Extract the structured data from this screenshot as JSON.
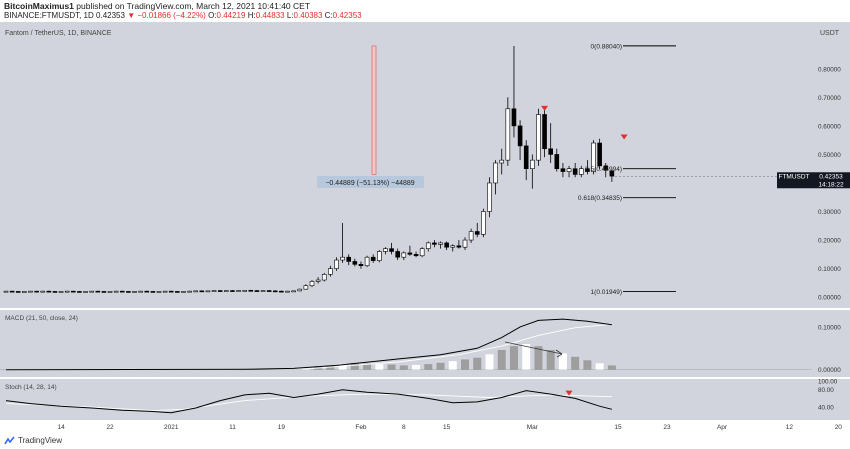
{
  "header": {
    "line1_author": "BitcoinMaximus1",
    "line1_rest": " published on TradingView.com, March 12, 2021 10:41:40 CET",
    "symbol": "BINANCE:FTMUSDT, 1D",
    "last": "0.42353",
    "change": "−0.01866 (−4.22%)",
    "o_label": "O:",
    "o": "0.44219",
    "h_label": "H:",
    "h": "0.44833",
    "l_label": "L:",
    "l": "0.40383",
    "c_label": "C:",
    "c": "0.42353"
  },
  "footer": {
    "brand": "TradingView"
  },
  "colors": {
    "pane_bg": "#d1d4dc",
    "candle_up": "#ffffff",
    "candle_down": "#000000",
    "accent_red": "#e0302d",
    "measure_box": "#b8c8dc",
    "price_tag": "#131722"
  },
  "chart_data": {
    "type": "candlestick",
    "title": "Fantom / TetherUS, 1D, BINANCE",
    "currency": "USDT",
    "price_axis_ticks": [
      "0.80000",
      "0.70000",
      "0.60000",
      "0.50000",
      "0.40000",
      "0.30000",
      "0.20000",
      "0.10000",
      "0.00000"
    ],
    "ylim": [
      -0.01,
      0.95
    ],
    "time_axis_ticks": [
      {
        "label": "14",
        "day": 0
      },
      {
        "label": "22",
        "day": 8
      },
      {
        "label": "2021",
        "day": 18
      },
      {
        "label": "11",
        "day": 28
      },
      {
        "label": "19",
        "day": 36
      },
      {
        "label": "Feb",
        "day": 49
      },
      {
        "label": "8",
        "day": 56
      },
      {
        "label": "15",
        "day": 63
      },
      {
        "label": "Mar",
        "day": 77
      },
      {
        "label": "15",
        "day": 91
      },
      {
        "label": "23",
        "day": 99
      },
      {
        "label": "Apr",
        "day": 108
      },
      {
        "label": "12",
        "day": 119
      },
      {
        "label": "20",
        "day": 127
      }
    ],
    "x_day_range": [
      -9,
      130
    ],
    "current_price": {
      "label": "FTMUSDT",
      "value": "0.42353",
      "countdown": "14:18:22"
    },
    "fib_levels": [
      {
        "label": "0(0.88040)",
        "value": 0.8804
      },
      {
        "label": "0.5(0.44994)",
        "value": 0.44994
      },
      {
        "label": "0.618(0.34835)",
        "value": 0.34835
      },
      {
        "label": "1(0.01949)",
        "value": 0.01949
      }
    ],
    "measure": {
      "text": "−0.44889 (−51.13%) −44889",
      "from": 0.88,
      "to": 0.43
    },
    "sell_arrows": [
      {
        "day": 79,
        "value": 0.67
      },
      {
        "day": 92,
        "value": 0.57
      }
    ],
    "candles": [
      [
        -9,
        0.02,
        0.022,
        0.019,
        0.021
      ],
      [
        -8,
        0.021,
        0.022,
        0.019,
        0.02
      ],
      [
        -7,
        0.02,
        0.021,
        0.018,
        0.019
      ],
      [
        -6,
        0.019,
        0.021,
        0.018,
        0.02
      ],
      [
        -5,
        0.02,
        0.022,
        0.019,
        0.021
      ],
      [
        -4,
        0.021,
        0.022,
        0.019,
        0.02
      ],
      [
        -3,
        0.02,
        0.022,
        0.019,
        0.021
      ],
      [
        -2,
        0.021,
        0.022,
        0.019,
        0.02
      ],
      [
        -1,
        0.02,
        0.021,
        0.018,
        0.019
      ],
      [
        0,
        0.019,
        0.021,
        0.018,
        0.02
      ],
      [
        1,
        0.02,
        0.022,
        0.019,
        0.021
      ],
      [
        2,
        0.021,
        0.022,
        0.019,
        0.02
      ],
      [
        3,
        0.02,
        0.021,
        0.018,
        0.019
      ],
      [
        4,
        0.019,
        0.021,
        0.018,
        0.02
      ],
      [
        5,
        0.02,
        0.022,
        0.019,
        0.021
      ],
      [
        6,
        0.021,
        0.022,
        0.019,
        0.02
      ],
      [
        7,
        0.02,
        0.021,
        0.018,
        0.019
      ],
      [
        8,
        0.019,
        0.021,
        0.018,
        0.02
      ],
      [
        9,
        0.02,
        0.022,
        0.019,
        0.021
      ],
      [
        10,
        0.021,
        0.022,
        0.019,
        0.02
      ],
      [
        11,
        0.02,
        0.021,
        0.018,
        0.019
      ],
      [
        12,
        0.019,
        0.021,
        0.018,
        0.02
      ],
      [
        13,
        0.02,
        0.022,
        0.019,
        0.021
      ],
      [
        14,
        0.021,
        0.022,
        0.019,
        0.02
      ],
      [
        15,
        0.02,
        0.021,
        0.018,
        0.019
      ],
      [
        16,
        0.019,
        0.021,
        0.018,
        0.02
      ],
      [
        17,
        0.02,
        0.022,
        0.019,
        0.021
      ],
      [
        18,
        0.021,
        0.022,
        0.019,
        0.02
      ],
      [
        19,
        0.02,
        0.021,
        0.018,
        0.019
      ],
      [
        20,
        0.019,
        0.021,
        0.018,
        0.02
      ],
      [
        21,
        0.02,
        0.022,
        0.019,
        0.021
      ],
      [
        22,
        0.021,
        0.023,
        0.019,
        0.022
      ],
      [
        23,
        0.022,
        0.024,
        0.02,
        0.021
      ],
      [
        24,
        0.021,
        0.023,
        0.019,
        0.022
      ],
      [
        25,
        0.022,
        0.024,
        0.02,
        0.023
      ],
      [
        26,
        0.023,
        0.025,
        0.021,
        0.022
      ],
      [
        27,
        0.022,
        0.024,
        0.02,
        0.023
      ],
      [
        28,
        0.023,
        0.025,
        0.021,
        0.022
      ],
      [
        29,
        0.022,
        0.024,
        0.02,
        0.023
      ],
      [
        30,
        0.023,
        0.025,
        0.021,
        0.024
      ],
      [
        31,
        0.024,
        0.026,
        0.022,
        0.023
      ],
      [
        32,
        0.023,
        0.025,
        0.021,
        0.022
      ],
      [
        33,
        0.022,
        0.024,
        0.02,
        0.023
      ],
      [
        34,
        0.023,
        0.025,
        0.021,
        0.022
      ],
      [
        35,
        0.022,
        0.024,
        0.02,
        0.021
      ],
      [
        36,
        0.021,
        0.023,
        0.019,
        0.02
      ],
      [
        37,
        0.02,
        0.022,
        0.019,
        0.021
      ],
      [
        38,
        0.021,
        0.023,
        0.02,
        0.022
      ],
      [
        39,
        0.022,
        0.03,
        0.02,
        0.028
      ],
      [
        40,
        0.028,
        0.045,
        0.026,
        0.04
      ],
      [
        41,
        0.04,
        0.06,
        0.035,
        0.055
      ],
      [
        42,
        0.055,
        0.07,
        0.048,
        0.06
      ],
      [
        43,
        0.06,
        0.085,
        0.055,
        0.08
      ],
      [
        44,
        0.08,
        0.11,
        0.072,
        0.1
      ],
      [
        45,
        0.1,
        0.14,
        0.092,
        0.13
      ],
      [
        46,
        0.13,
        0.26,
        0.12,
        0.14
      ],
      [
        47,
        0.14,
        0.15,
        0.112,
        0.125
      ],
      [
        48,
        0.125,
        0.135,
        0.108,
        0.115
      ],
      [
        49,
        0.115,
        0.125,
        0.1,
        0.11
      ],
      [
        50,
        0.11,
        0.145,
        0.105,
        0.14
      ],
      [
        51,
        0.14,
        0.15,
        0.12,
        0.128
      ],
      [
        52,
        0.128,
        0.165,
        0.122,
        0.16
      ],
      [
        53,
        0.16,
        0.175,
        0.15,
        0.17
      ],
      [
        54,
        0.17,
        0.19,
        0.15,
        0.16
      ],
      [
        55,
        0.16,
        0.17,
        0.13,
        0.14
      ],
      [
        56,
        0.14,
        0.16,
        0.13,
        0.155
      ],
      [
        57,
        0.155,
        0.18,
        0.145,
        0.15
      ],
      [
        58,
        0.15,
        0.16,
        0.14,
        0.145
      ],
      [
        59,
        0.145,
        0.175,
        0.14,
        0.17
      ],
      [
        60,
        0.17,
        0.195,
        0.16,
        0.19
      ],
      [
        61,
        0.19,
        0.2,
        0.175,
        0.185
      ],
      [
        62,
        0.185,
        0.195,
        0.17,
        0.19
      ],
      [
        63,
        0.19,
        0.195,
        0.165,
        0.175
      ],
      [
        64,
        0.175,
        0.185,
        0.16,
        0.18
      ],
      [
        65,
        0.18,
        0.2,
        0.17,
        0.175
      ],
      [
        66,
        0.175,
        0.21,
        0.165,
        0.2
      ],
      [
        67,
        0.2,
        0.24,
        0.19,
        0.23
      ],
      [
        68,
        0.23,
        0.26,
        0.21,
        0.22
      ],
      [
        69,
        0.22,
        0.31,
        0.21,
        0.3
      ],
      [
        70,
        0.3,
        0.42,
        0.28,
        0.4
      ],
      [
        71,
        0.4,
        0.48,
        0.36,
        0.47
      ],
      [
        72,
        0.47,
        0.52,
        0.43,
        0.48
      ],
      [
        73,
        0.48,
        0.7,
        0.46,
        0.66
      ],
      [
        74,
        0.66,
        0.88,
        0.56,
        0.6
      ],
      [
        75,
        0.6,
        0.62,
        0.48,
        0.53
      ],
      [
        76,
        0.53,
        0.55,
        0.41,
        0.45
      ],
      [
        77,
        0.45,
        0.5,
        0.38,
        0.48
      ],
      [
        78,
        0.48,
        0.66,
        0.46,
        0.64
      ],
      [
        79,
        0.64,
        0.66,
        0.49,
        0.52
      ],
      [
        80,
        0.52,
        0.61,
        0.47,
        0.5
      ],
      [
        81,
        0.5,
        0.52,
        0.44,
        0.45
      ],
      [
        82,
        0.45,
        0.47,
        0.42,
        0.44
      ],
      [
        83,
        0.44,
        0.46,
        0.42,
        0.45
      ],
      [
        84,
        0.45,
        0.47,
        0.42,
        0.43
      ],
      [
        85,
        0.43,
        0.46,
        0.42,
        0.45
      ],
      [
        86,
        0.45,
        0.48,
        0.43,
        0.44
      ],
      [
        87,
        0.44,
        0.55,
        0.43,
        0.54
      ],
      [
        88,
        0.54,
        0.555,
        0.45,
        0.46
      ],
      [
        89,
        0.46,
        0.47,
        0.42,
        0.445
      ],
      [
        90,
        0.442,
        0.448,
        0.404,
        0.424
      ]
    ]
  },
  "macd_pane": {
    "title": "MACD (21, 50, close, 24)",
    "ticks": [
      "0.10000",
      "0.00000"
    ],
    "ylim": [
      -0.01,
      0.13
    ],
    "macd": [
      [
        -9,
        0
      ],
      [
        30,
        0.001
      ],
      [
        38,
        0.003
      ],
      [
        45,
        0.01
      ],
      [
        55,
        0.025
      ],
      [
        62,
        0.035
      ],
      [
        68,
        0.05
      ],
      [
        72,
        0.075
      ],
      [
        75,
        0.1
      ],
      [
        78,
        0.115
      ],
      [
        82,
        0.118
      ],
      [
        86,
        0.113
      ],
      [
        90,
        0.105
      ]
    ],
    "signal": [
      [
        -9,
        0
      ],
      [
        40,
        0.002
      ],
      [
        55,
        0.018
      ],
      [
        65,
        0.035
      ],
      [
        72,
        0.055
      ],
      [
        78,
        0.08
      ],
      [
        84,
        0.098
      ],
      [
        90,
        0.106
      ]
    ],
    "hist": [
      [
        40,
        0.003
      ],
      [
        42,
        0.008
      ],
      [
        44,
        0.01
      ],
      [
        46,
        0.014
      ],
      [
        48,
        0.016
      ],
      [
        50,
        0.014
      ],
      [
        52,
        0.013
      ],
      [
        54,
        0.012
      ],
      [
        56,
        0.01
      ],
      [
        58,
        0.011
      ],
      [
        60,
        0.013
      ],
      [
        62,
        0.016
      ],
      [
        64,
        0.02
      ],
      [
        66,
        0.024
      ],
      [
        68,
        0.028
      ],
      [
        70,
        0.036
      ],
      [
        72,
        0.046
      ],
      [
        74,
        0.055
      ],
      [
        76,
        0.06
      ],
      [
        78,
        0.055
      ],
      [
        80,
        0.046
      ],
      [
        82,
        0.038
      ],
      [
        84,
        0.03
      ],
      [
        86,
        0.022
      ],
      [
        88,
        0.015
      ],
      [
        90,
        0.01
      ]
    ]
  },
  "stoch_pane": {
    "title": "Stoch (14, 28, 14)",
    "ticks": [
      "100.00",
      "80.00",
      "40.00"
    ],
    "ylim": [
      15,
      100
    ],
    "k": [
      [
        -9,
        55
      ],
      [
        -5,
        48
      ],
      [
        0,
        42
      ],
      [
        5,
        38
      ],
      [
        10,
        33
      ],
      [
        15,
        30
      ],
      [
        18,
        27
      ],
      [
        22,
        38
      ],
      [
        26,
        55
      ],
      [
        30,
        68
      ],
      [
        34,
        72
      ],
      [
        38,
        62
      ],
      [
        42,
        70
      ],
      [
        46,
        80
      ],
      [
        50,
        74
      ],
      [
        55,
        70
      ],
      [
        60,
        60
      ],
      [
        64,
        50
      ],
      [
        68,
        52
      ],
      [
        72,
        62
      ],
      [
        76,
        78
      ],
      [
        80,
        70
      ],
      [
        84,
        60
      ],
      [
        88,
        42
      ],
      [
        90,
        35
      ]
    ],
    "d": [
      [
        -9,
        48
      ],
      [
        5,
        40
      ],
      [
        15,
        32
      ],
      [
        20,
        35
      ],
      [
        30,
        55
      ],
      [
        40,
        65
      ],
      [
        50,
        70
      ],
      [
        60,
        68
      ],
      [
        70,
        62
      ],
      [
        80,
        68
      ],
      [
        90,
        64
      ]
    ],
    "sell_arrow": {
      "day": 83,
      "value": 78
    }
  }
}
